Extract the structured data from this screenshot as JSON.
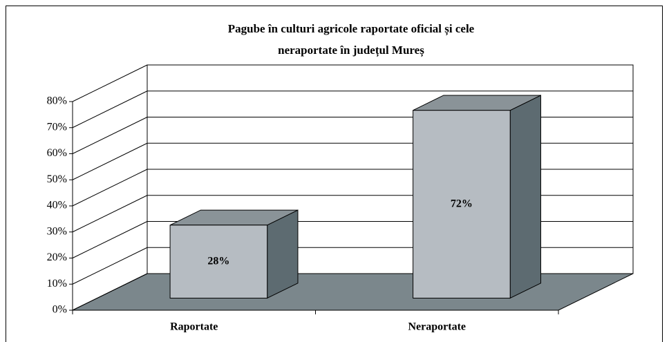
{
  "chart_data": {
    "type": "bar3d",
    "title": [
      "Pagube în culturi agricole raportate oficial și cele",
      "neraportate în județul Mureș"
    ],
    "categories": [
      "Raportate",
      "Neraportate"
    ],
    "values": [
      28,
      72
    ],
    "value_labels": [
      "28%",
      "72%"
    ],
    "color": "#b6bcc2",
    "ylim": [
      0,
      80
    ],
    "yticks": [
      {
        "value": 0,
        "label": "0%"
      },
      {
        "value": 10,
        "label": "10%"
      },
      {
        "value": 20,
        "label": "20%"
      },
      {
        "value": 30,
        "label": "30%"
      },
      {
        "value": 40,
        "label": "40%"
      },
      {
        "value": 50,
        "label": "50%"
      },
      {
        "value": 60,
        "label": "60%"
      },
      {
        "value": 70,
        "label": "70%"
      },
      {
        "value": 80,
        "label": "80%"
      }
    ],
    "grid": true
  }
}
